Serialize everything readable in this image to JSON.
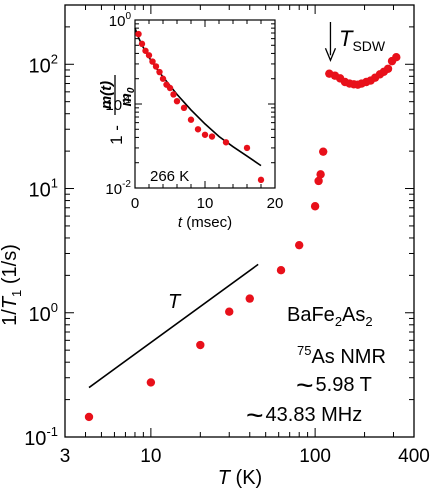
{
  "chart_data": [
    {
      "id": "main",
      "type": "scatter",
      "x_scale": "log",
      "y_scale": "log",
      "xlim": [
        3,
        400
      ],
      "ylim": [
        0.1,
        300
      ],
      "xlabel": {
        "sym": "T",
        "unit": " (K)"
      },
      "ylabel": {
        "pre": "1/",
        "sym": "T",
        "sub": "1",
        "unit": "  (1/s)"
      },
      "x_ticks": [
        {
          "v": 3,
          "label": "3"
        },
        {
          "v": 10,
          "label": "10"
        },
        {
          "v": 100,
          "label": "100"
        },
        {
          "v": 400,
          "label": "400"
        }
      ],
      "y_ticks": [
        {
          "v": 0.1,
          "base": "10",
          "exp": "-1"
        },
        {
          "v": 1,
          "base": "10",
          "exp": "0"
        },
        {
          "v": 10,
          "base": "10",
          "exp": "1"
        },
        {
          "v": 100,
          "base": "10",
          "exp": "2"
        }
      ],
      "series": [
        {
          "color": "#e8101a",
          "points": [
            [
              4.2,
              0.145
            ],
            [
              10,
              0.275
            ],
            [
              20,
              0.55
            ],
            [
              30,
              1.02
            ],
            [
              40,
              1.3
            ],
            [
              62,
              2.2
            ],
            [
              80,
              3.5
            ],
            [
              100,
              7.2
            ],
            [
              105,
              11.5
            ],
            [
              108,
              13.0
            ],
            [
              112,
              19.8
            ],
            [
              122,
              84
            ],
            [
              132,
              81
            ],
            [
              142,
              77
            ],
            [
              152,
              72
            ],
            [
              162,
              70
            ],
            [
              172,
              69
            ],
            [
              182,
              68.5
            ],
            [
              192,
              70
            ],
            [
              205,
              72
            ],
            [
              218,
              74
            ],
            [
              232,
              78
            ],
            [
              248,
              83
            ],
            [
              262,
              87
            ],
            [
              278,
              92
            ],
            [
              294,
              106
            ],
            [
              312,
              114
            ]
          ]
        }
      ],
      "reference_line": {
        "label": "T",
        "from": [
          4.2,
          0.25
        ],
        "to": [
          45,
          2.45
        ]
      },
      "annotation": {
        "label_sym": "T",
        "label_sub": "SDW",
        "x": 124,
        "y": 100
      },
      "sample": {
        "prefix": "BaFe",
        "sub1": "2",
        "mid": "As",
        "sub2": "2",
        "nucleus_sup": "75",
        "nucleus_rest": "As NMR",
        "field": "5.98 T",
        "freq": "43.83 MHz",
        "approx": "~"
      }
    },
    {
      "id": "inset",
      "type": "scatter",
      "x_scale": "linear",
      "y_scale": "log",
      "xlim": [
        0,
        20
      ],
      "ylim": [
        0.01,
        1
      ],
      "xlabel": {
        "sym": "t",
        "unit": " (msec)"
      },
      "ylabel": {
        "one": "1 - ",
        "num": "m(t)",
        "den": "m",
        "den_sub": "0"
      },
      "x_ticks": [
        {
          "v": 0,
          "label": "0"
        },
        {
          "v": 10,
          "label": "10"
        },
        {
          "v": 20,
          "label": "20"
        }
      ],
      "y_ticks": [
        {
          "v": 0.01,
          "base": "10",
          "exp": "-2"
        },
        {
          "v": 0.1,
          "base": "10",
          "exp": "-1"
        },
        {
          "v": 1,
          "base": "10",
          "exp": "0"
        }
      ],
      "annotation": "266 K",
      "series": [
        {
          "color": "#e8101a",
          "points": [
            [
              0.5,
              0.68
            ],
            [
              1.0,
              0.52
            ],
            [
              1.5,
              0.43
            ],
            [
              2.0,
              0.38
            ],
            [
              2.5,
              0.32
            ],
            [
              3.0,
              0.28
            ],
            [
              3.5,
              0.24
            ],
            [
              4.0,
              0.2
            ],
            [
              4.5,
              0.17
            ],
            [
              5.0,
              0.155
            ],
            [
              5.5,
              0.13
            ],
            [
              6.0,
              0.108
            ],
            [
              7.0,
              0.09
            ],
            [
              8.0,
              0.065
            ],
            [
              9.0,
              0.05
            ],
            [
              10.0,
              0.043
            ],
            [
              11.0,
              0.041
            ],
            [
              13.0,
              0.035
            ],
            [
              16.0,
              0.03
            ],
            [
              18.0,
              0.0125
            ]
          ]
        }
      ],
      "fit_curve": {
        "color": "#000000",
        "points": [
          [
            0.0,
            0.8
          ],
          [
            0.5,
            0.62
          ],
          [
            1.0,
            0.5
          ],
          [
            2.0,
            0.36
          ],
          [
            3.0,
            0.27
          ],
          [
            4.0,
            0.21
          ],
          [
            5.0,
            0.165
          ],
          [
            6.0,
            0.13
          ],
          [
            7.0,
            0.105
          ],
          [
            8.0,
            0.085
          ],
          [
            10.0,
            0.058
          ],
          [
            12.0,
            0.041
          ],
          [
            14.0,
            0.031
          ],
          [
            16.0,
            0.024
          ],
          [
            18.0,
            0.0185
          ]
        ]
      }
    }
  ]
}
